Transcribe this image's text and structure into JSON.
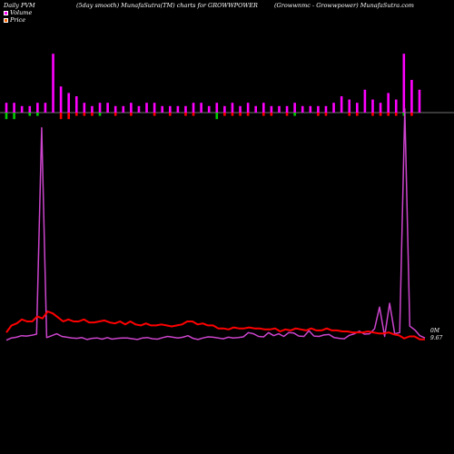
{
  "header": {
    "left": "Daily PVM",
    "center": "(5day smooth) MunafaSutra(TM) charts for GROWWPOWER",
    "right": "(Growwnmc - Growwpower) MunafaSutra.com"
  },
  "legend": {
    "volume": "Volume",
    "price": "Price"
  },
  "colors": {
    "volume_up": "#ff00ff",
    "volume_down": "#ff0000",
    "volume_green": "#00cc00",
    "price_line": "#ff0000",
    "pvm_line": "#cc44cc",
    "baseline": "#999999"
  },
  "end_labels": {
    "top": "0M",
    "bottom": "9.67"
  },
  "chart_data": {
    "type": "line",
    "title": "",
    "xlabel": "",
    "ylabel": "",
    "bars_up": [
      3,
      3,
      2,
      2,
      3,
      3,
      18,
      8,
      6,
      5,
      3,
      2,
      3,
      3,
      2,
      2,
      3,
      2,
      3,
      3,
      2,
      2,
      2,
      2,
      3,
      3,
      2,
      3,
      2,
      3,
      2,
      3,
      2,
      3,
      2,
      2,
      2,
      3,
      2,
      2,
      2,
      2,
      3,
      5,
      4,
      3,
      7,
      4,
      3,
      6,
      4,
      18,
      10,
      7
    ],
    "bars_down": [
      2,
      2,
      0,
      1,
      1,
      0,
      0,
      2,
      2,
      1,
      1,
      1,
      1,
      0,
      1,
      0,
      1,
      0,
      0,
      1,
      0,
      1,
      0,
      1,
      1,
      0,
      0,
      2,
      1,
      1,
      1,
      1,
      0,
      1,
      1,
      0,
      1,
      1,
      0,
      0,
      1,
      1,
      0,
      0,
      1,
      1,
      0,
      1,
      1,
      1,
      1,
      1,
      1,
      0
    ],
    "bars_down_green": [
      true,
      true,
      false,
      true,
      true,
      false,
      false,
      false,
      false,
      false,
      false,
      false,
      true,
      false,
      false,
      false,
      false,
      false,
      false,
      false,
      false,
      false,
      false,
      false,
      false,
      false,
      false,
      true,
      false,
      false,
      false,
      false,
      false,
      false,
      false,
      false,
      false,
      true,
      false,
      false,
      false,
      false,
      false,
      false,
      false,
      false,
      false,
      false,
      false,
      false,
      false,
      true,
      false,
      false
    ],
    "pvm_series": [
      0.3,
      0.9,
      1.1,
      1.5,
      1.4,
      1.6,
      1.9,
      56,
      1.0,
      1.5,
      2.0,
      1.3,
      1.1,
      0.9,
      0.8,
      1.0,
      0.5,
      0.8,
      0.9,
      0.6,
      1.0,
      0.6,
      0.8,
      0.9,
      0.9,
      0.7,
      0.5,
      0.9,
      1.0,
      0.7,
      0.6,
      1.0,
      1.3,
      1.1,
      0.9,
      1.1,
      1.5,
      0.8,
      0.5,
      0.9,
      1.2,
      1.1,
      0.9,
      0.7,
      1.1,
      0.9,
      1.0,
      1.2,
      2.3,
      2.0,
      1.3,
      1.2,
      2.3,
      1.5,
      2.0,
      1.3,
      2.3,
      2.2,
      1.4,
      1.3,
      2.8,
      1.4,
      1.3,
      1.7,
      1.8,
      1.0,
      0.8,
      0.7,
      1.6,
      2.0,
      2.7,
      1.9,
      2.0,
      3.3,
      9,
      1.3,
      10,
      2.0,
      2.3,
      61,
      4,
      3,
      1.5,
      0.9
    ],
    "price_series": [
      0.9,
      1.6,
      1.8,
      2.2,
      2.0,
      2.0,
      2.5,
      2.3,
      3.0,
      2.8,
      2.4,
      2.0,
      2.2,
      2.0,
      2.0,
      2.2,
      1.9,
      1.9,
      2.0,
      2.1,
      1.9,
      1.8,
      2.0,
      1.7,
      2.0,
      1.7,
      1.6,
      1.8,
      1.6,
      1.6,
      1.7,
      1.6,
      1.5,
      1.6,
      1.7,
      2.0,
      2.0,
      1.7,
      1.8,
      1.6,
      1.6,
      1.3,
      1.3,
      1.2,
      1.4,
      1.3,
      1.3,
      1.4,
      1.3,
      1.3,
      1.2,
      1.2,
      1.3,
      1.0,
      1.2,
      1.1,
      1.3,
      1.2,
      1.1,
      1.3,
      1.1,
      1.1,
      1.3,
      1.1,
      1.1,
      1.0,
      1.0,
      0.9,
      0.9,
      0.9,
      1.0,
      0.9,
      0.8,
      0.8,
      0.9,
      0.7,
      0.6,
      0.3,
      0.5,
      0.5,
      0.2,
      0.2
    ]
  }
}
